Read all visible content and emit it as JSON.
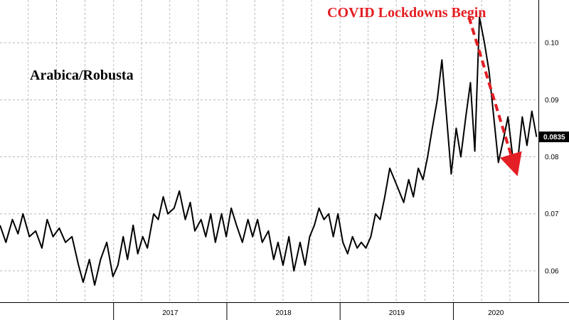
{
  "chart_data": {
    "type": "line",
    "title": "Arabica/Robusta",
    "annotation": "COVID Lockdowns Begin",
    "last_value_label": "0.0835",
    "xlabel": "",
    "ylabel": "",
    "x_ticks": [
      "2017",
      "2018",
      "2019",
      "2020"
    ],
    "y_ticks": [
      "0.06",
      "0.07",
      "0.08",
      "0.09",
      "0.10"
    ],
    "y_tick_values": [
      0.06,
      0.07,
      0.08,
      0.09,
      0.1
    ],
    "ylim": [
      0.0545,
      0.1075
    ],
    "xlim": [
      "2016-01-01",
      "2020-10-01"
    ],
    "grid": true,
    "colors": {
      "line": "#000000",
      "annotation": "#e31e24",
      "grid": "#b9b9b9"
    },
    "arrow": {
      "from": [
        "2020-02-20",
        0.1045
      ],
      "to": [
        "2020-07-15",
        0.0785
      ]
    },
    "series": [
      {
        "x": [
          "2016-01-01",
          "2016-01-20",
          "2016-02-10",
          "2016-02-28",
          "2016-03-15",
          "2016-04-05",
          "2016-04-25",
          "2016-05-15",
          "2016-06-01",
          "2016-06-20",
          "2016-07-10",
          "2016-07-30",
          "2016-08-20",
          "2016-09-10",
          "2016-09-25",
          "2016-10-15",
          "2016-11-01",
          "2016-11-20",
          "2016-12-10",
          "2016-12-30",
          "2017-01-15",
          "2017-02-01",
          "2017-02-15",
          "2017-03-05",
          "2017-03-20",
          "2017-04-05",
          "2017-04-20",
          "2017-05-10",
          "2017-05-25",
          "2017-06-10",
          "2017-06-25",
          "2017-07-15",
          "2017-08-01",
          "2017-08-20",
          "2017-09-05",
          "2017-09-20",
          "2017-10-10",
          "2017-10-25",
          "2017-11-10",
          "2017-11-25",
          "2017-12-15",
          "2017-12-30",
          "2018-01-15",
          "2018-02-01",
          "2018-02-20",
          "2018-03-10",
          "2018-03-25",
          "2018-04-10",
          "2018-04-25",
          "2018-05-15",
          "2018-06-01",
          "2018-06-15",
          "2018-07-01",
          "2018-07-20",
          "2018-08-05",
          "2018-08-25",
          "2018-09-10",
          "2018-09-25",
          "2018-10-10",
          "2018-10-25",
          "2018-11-10",
          "2018-11-25",
          "2018-12-10",
          "2018-12-25",
          "2019-01-10",
          "2019-01-25",
          "2019-02-10",
          "2019-02-25",
          "2019-03-10",
          "2019-03-25",
          "2019-04-10",
          "2019-04-25",
          "2019-05-10",
          "2019-05-25",
          "2019-06-10",
          "2019-06-25",
          "2019-07-10",
          "2019-07-25",
          "2019-08-10",
          "2019-08-25",
          "2019-09-10",
          "2019-09-25",
          "2019-10-10",
          "2019-10-25",
          "2019-11-10",
          "2019-11-25",
          "2019-12-10",
          "2019-12-25",
          "2020-01-10",
          "2020-01-25",
          "2020-02-10",
          "2020-02-25",
          "2020-03-10",
          "2020-03-25",
          "2020-04-10",
          "2020-04-25",
          "2020-05-10",
          "2020-05-25",
          "2020-06-10",
          "2020-06-25",
          "2020-07-10",
          "2020-07-25",
          "2020-08-10",
          "2020-08-25",
          "2020-09-10",
          "2020-09-25"
        ],
        "values": [
          0.068,
          0.065,
          0.069,
          0.0665,
          0.07,
          0.066,
          0.067,
          0.064,
          0.069,
          0.066,
          0.0675,
          0.065,
          0.066,
          0.061,
          0.058,
          0.062,
          0.0575,
          0.062,
          0.065,
          0.059,
          0.061,
          0.066,
          0.062,
          0.068,
          0.063,
          0.066,
          0.064,
          0.07,
          0.069,
          0.073,
          0.07,
          0.071,
          0.074,
          0.069,
          0.072,
          0.067,
          0.069,
          0.066,
          0.07,
          0.065,
          0.07,
          0.066,
          0.071,
          0.068,
          0.065,
          0.069,
          0.066,
          0.069,
          0.065,
          0.067,
          0.062,
          0.065,
          0.061,
          0.066,
          0.06,
          0.065,
          0.061,
          0.066,
          0.068,
          0.071,
          0.069,
          0.07,
          0.066,
          0.07,
          0.065,
          0.063,
          0.066,
          0.064,
          0.065,
          0.064,
          0.066,
          0.07,
          0.069,
          0.073,
          0.078,
          0.076,
          0.074,
          0.072,
          0.076,
          0.073,
          0.078,
          0.076,
          0.08,
          0.085,
          0.09,
          0.097,
          0.087,
          0.077,
          0.085,
          0.08,
          0.087,
          0.093,
          0.081,
          0.1045,
          0.1,
          0.095,
          0.087,
          0.079,
          0.083,
          0.087,
          0.08,
          0.0785,
          0.087,
          0.082,
          0.088,
          0.0835
        ]
      }
    ]
  }
}
